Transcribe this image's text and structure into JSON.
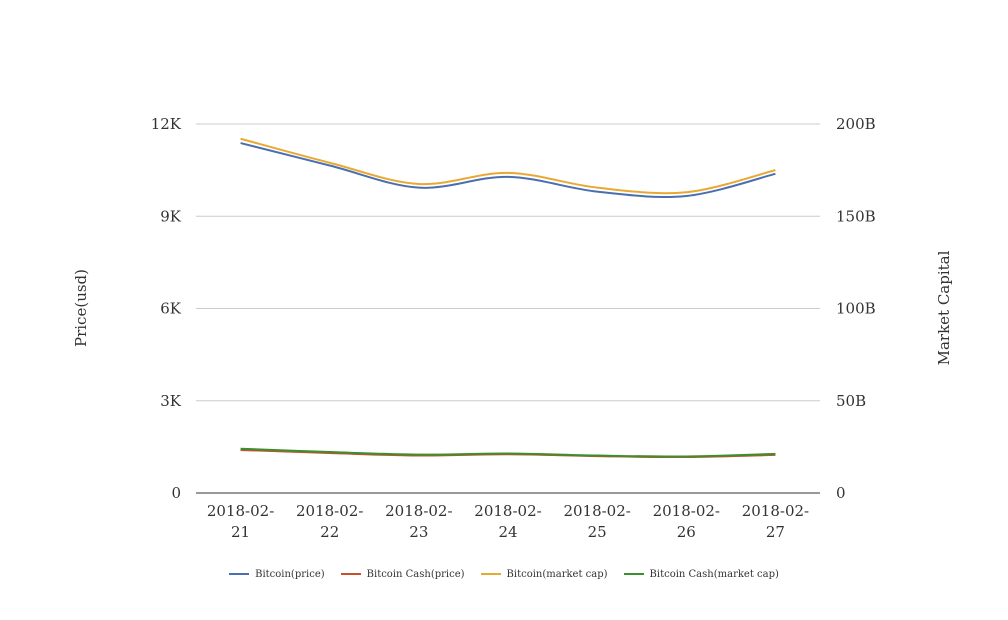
{
  "chart_data": {
    "type": "line",
    "categories": [
      "2018-02-21",
      "2018-02-22",
      "2018-02-23",
      "2018-02-24",
      "2018-02-25",
      "2018-02-26",
      "2018-02-27"
    ],
    "category_lines": [
      [
        "2018-02-",
        "21"
      ],
      [
        "2018-02-",
        "22"
      ],
      [
        "2018-02-",
        "23"
      ],
      [
        "2018-02-",
        "24"
      ],
      [
        "2018-02-",
        "25"
      ],
      [
        "2018-02-",
        "26"
      ],
      [
        "2018-02-",
        "27"
      ]
    ],
    "y_left": {
      "label": "Price(usd)",
      "min": 0,
      "max": 12000,
      "ticks": [
        "0",
        "3K",
        "6K",
        "9K",
        "12K"
      ],
      "tick_values": [
        0,
        3000,
        6000,
        9000,
        12000
      ]
    },
    "y_right": {
      "label": "Market Capital",
      "min": 0,
      "max": 200000000000,
      "ticks": [
        "0",
        "50B",
        "100B",
        "150B",
        "200B"
      ],
      "tick_values": [
        0,
        50000000000,
        100000000000,
        150000000000,
        200000000000
      ]
    },
    "grid": true,
    "legend_position": "bottom",
    "series": [
      {
        "name": "Bitcoin(price)",
        "axis": "left",
        "color": "#4a6fb0",
        "values": [
          11380,
          10650,
          9930,
          10280,
          9800,
          9660,
          10380
        ]
      },
      {
        "name": "Bitcoin Cash(price)",
        "axis": "left",
        "color": "#c9502b",
        "values": [
          1400,
          1300,
          1220,
          1260,
          1200,
          1170,
          1240
        ]
      },
      {
        "name": "Bitcoin(market cap)",
        "axis": "right",
        "color": "#e8a933",
        "values": [
          192000000000,
          179000000000,
          167500000000,
          173500000000,
          165500000000,
          163000000000,
          175000000000
        ]
      },
      {
        "name": "Bitcoin Cash(market cap)",
        "axis": "right",
        "color": "#3a8f2e",
        "values": [
          24000000000,
          22200000000,
          20800000000,
          21400000000,
          20300000000,
          19800000000,
          21200000000
        ]
      }
    ]
  }
}
